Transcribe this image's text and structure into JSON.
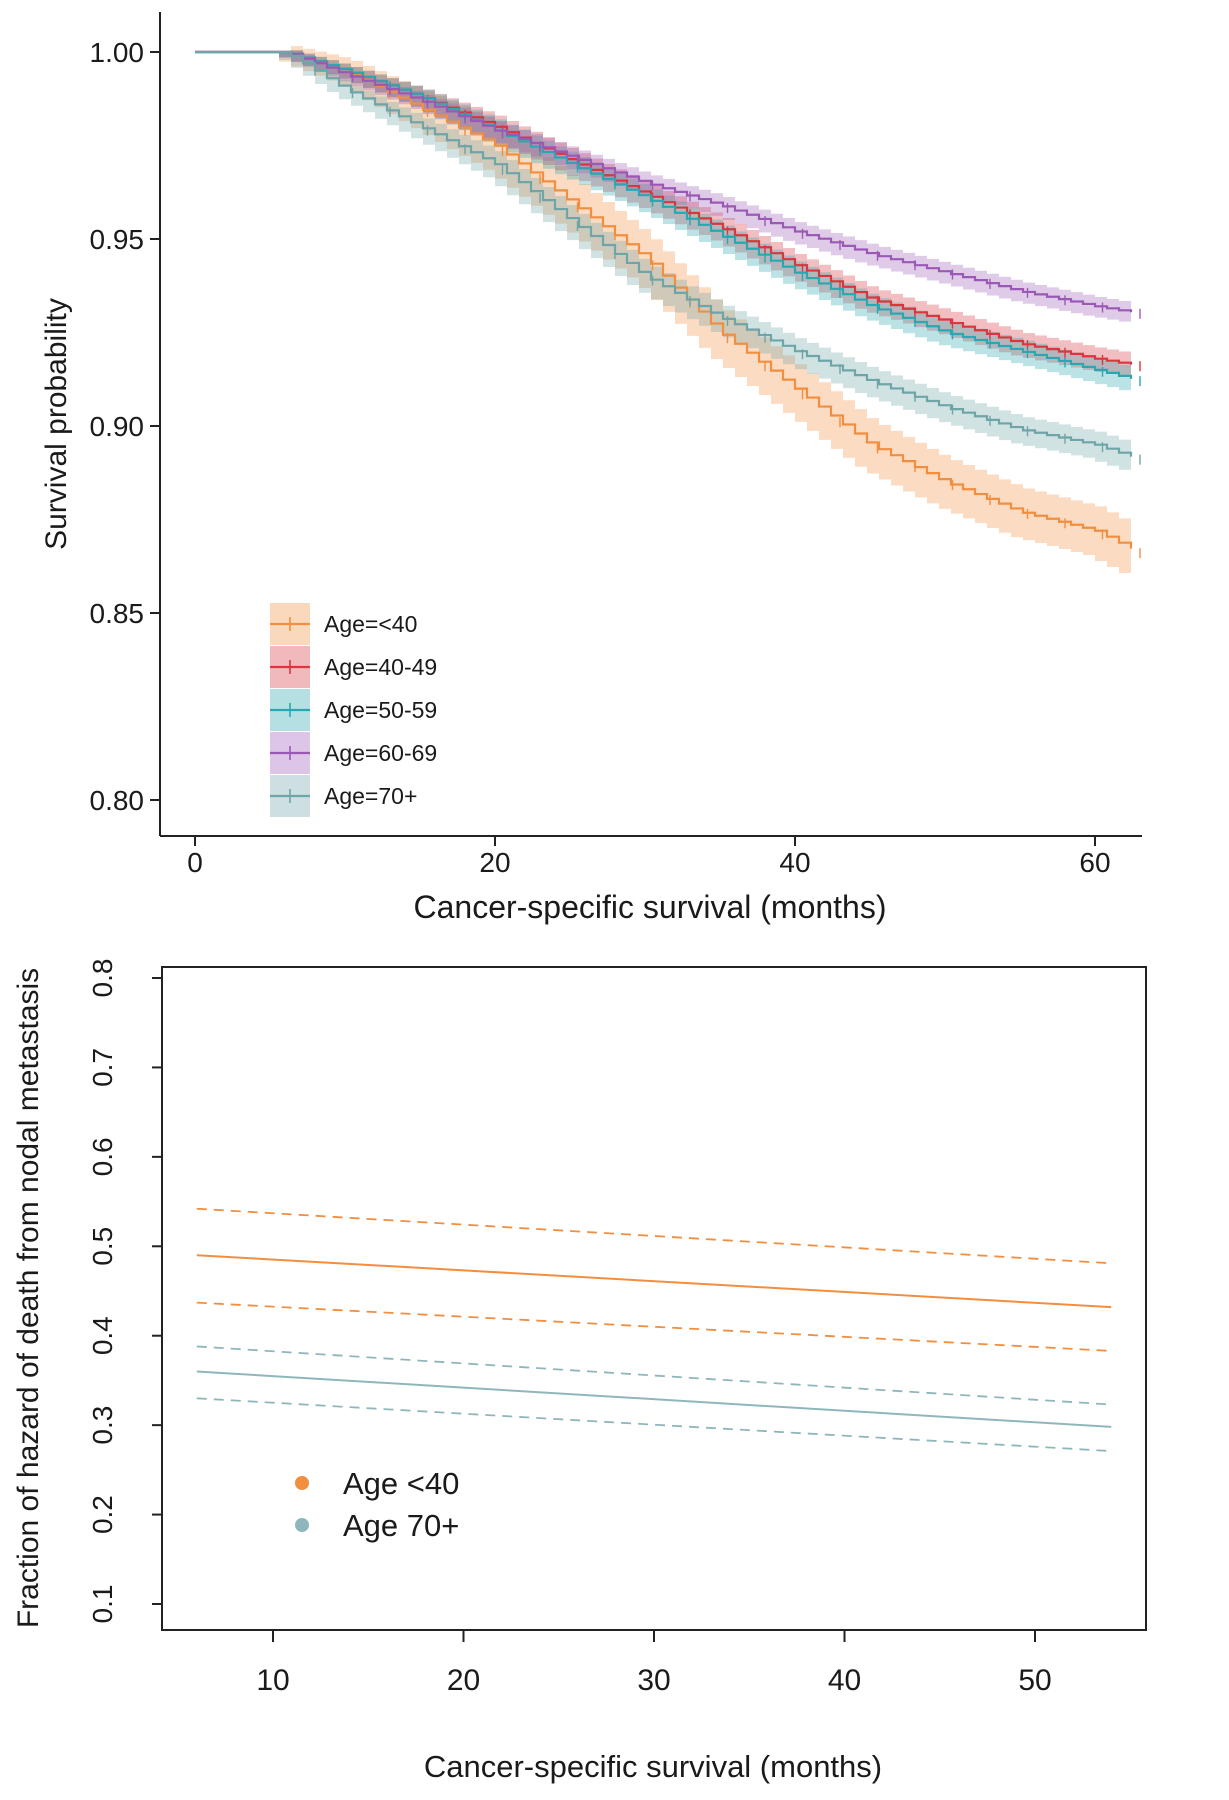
{
  "chart_data": [
    {
      "type": "line",
      "subtype": "kaplan-meier",
      "title": "",
      "xlabel": "Cancer-specific survival (months)",
      "ylabel": "Survival probability",
      "xlim": [
        0,
        63
      ],
      "ylim": [
        0.79,
        1.0
      ],
      "xticks": [
        0,
        20,
        40,
        60
      ],
      "xtick_labels": [
        "0",
        "20",
        "40",
        "60"
      ],
      "yticks": [
        0.8,
        0.85,
        0.9,
        0.95,
        1.0
      ],
      "ytick_labels": [
        "0.80",
        "0.85",
        "0.90",
        "0.95",
        "1.00"
      ],
      "grid": false,
      "legend_position": "bottom-left",
      "confidence_bands": true,
      "series": [
        {
          "name": "Age=<40",
          "color": "#f28e3f",
          "ci_halfwidth": 0.0065,
          "points": [
            [
              0,
              1.0
            ],
            [
              6,
              1.0
            ],
            [
              10,
              0.995
            ],
            [
              15,
              0.985
            ],
            [
              20,
              0.975
            ],
            [
              25,
              0.96
            ],
            [
              30,
              0.945
            ],
            [
              35,
              0.925
            ],
            [
              40,
              0.91
            ],
            [
              45,
              0.895
            ],
            [
              50,
              0.885
            ],
            [
              55,
              0.877
            ],
            [
              60,
              0.872
            ],
            [
              63,
              0.866
            ]
          ]
        },
        {
          "name": "Age=40-49",
          "color": "#d9363e",
          "ci_halfwidth": 0.003,
          "points": [
            [
              0,
              1.0
            ],
            [
              6,
              1.0
            ],
            [
              10,
              0.995
            ],
            [
              15,
              0.988
            ],
            [
              20,
              0.98
            ],
            [
              25,
              0.971
            ],
            [
              30,
              0.962
            ],
            [
              35,
              0.953
            ],
            [
              40,
              0.943
            ],
            [
              45,
              0.934
            ],
            [
              50,
              0.928
            ],
            [
              55,
              0.922
            ],
            [
              60,
              0.918
            ],
            [
              63,
              0.916
            ]
          ]
        },
        {
          "name": "Age=50-59",
          "color": "#2aa7b0",
          "ci_halfwidth": 0.003,
          "points": [
            [
              0,
              1.0
            ],
            [
              6,
              1.0
            ],
            [
              10,
              0.995
            ],
            [
              15,
              0.988
            ],
            [
              20,
              0.979
            ],
            [
              25,
              0.97
            ],
            [
              30,
              0.961
            ],
            [
              35,
              0.951
            ],
            [
              40,
              0.941
            ],
            [
              45,
              0.932
            ],
            [
              50,
              0.925
            ],
            [
              55,
              0.92
            ],
            [
              60,
              0.915
            ],
            [
              63,
              0.912
            ]
          ]
        },
        {
          "name": "Age=60-69",
          "color": "#9b59b6",
          "ci_halfwidth": 0.0025,
          "points": [
            [
              0,
              1.0
            ],
            [
              6,
              1.0
            ],
            [
              10,
              0.994
            ],
            [
              15,
              0.987
            ],
            [
              20,
              0.979
            ],
            [
              25,
              0.972
            ],
            [
              30,
              0.965
            ],
            [
              35,
              0.959
            ],
            [
              40,
              0.952
            ],
            [
              45,
              0.946
            ],
            [
              50,
              0.941
            ],
            [
              55,
              0.936
            ],
            [
              60,
              0.932
            ],
            [
              63,
              0.93
            ]
          ]
        },
        {
          "name": "Age=70+",
          "color": "#6fa4a8",
          "ci_halfwidth": 0.0035,
          "points": [
            [
              0,
              1.0
            ],
            [
              6,
              1.0
            ],
            [
              10,
              0.99
            ],
            [
              15,
              0.98
            ],
            [
              20,
              0.97
            ],
            [
              25,
              0.955
            ],
            [
              30,
              0.94
            ],
            [
              35,
              0.929
            ],
            [
              40,
              0.92
            ],
            [
              45,
              0.912
            ],
            [
              50,
              0.905
            ],
            [
              55,
              0.899
            ],
            [
              60,
              0.895
            ],
            [
              63,
              0.891
            ]
          ]
        }
      ]
    },
    {
      "type": "line",
      "title": "",
      "xlabel": "Cancer-specific survival (months)",
      "ylabel": "Fraction of hazard of death from nodal metastasis",
      "xlim": [
        4,
        56
      ],
      "ylim": [
        0.07,
        0.83
      ],
      "xticks": [
        10,
        20,
        30,
        40,
        50
      ],
      "xtick_labels": [
        "10",
        "20",
        "30",
        "40",
        "50"
      ],
      "yticks": [
        0.1,
        0.2,
        0.3,
        0.4,
        0.5,
        0.6,
        0.7,
        0.8
      ],
      "ytick_labels": [
        "0.1",
        "0.2",
        "0.3",
        "0.4",
        "0.5",
        "0.6",
        "0.7",
        "0.8"
      ],
      "grid": false,
      "legend_position": "left",
      "series": [
        {
          "name": "Age <40",
          "color": "#f28e3f",
          "x": [
            6,
            54
          ],
          "estimate": [
            0.49,
            0.432
          ],
          "lower": [
            0.437,
            0.383
          ],
          "upper": [
            0.542,
            0.481
          ]
        },
        {
          "name": "Age 70+",
          "color": "#8fb7bb",
          "x": [
            6,
            54
          ],
          "estimate": [
            0.36,
            0.298
          ],
          "lower": [
            0.33,
            0.271
          ],
          "upper": [
            0.388,
            0.323
          ]
        }
      ]
    }
  ]
}
